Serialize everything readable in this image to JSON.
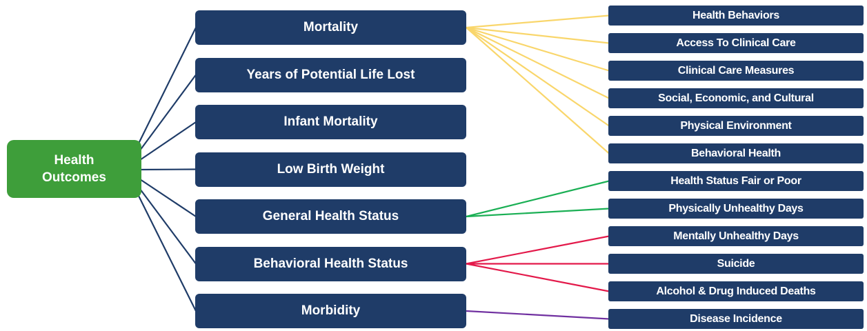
{
  "root": {
    "lines": [
      "Health",
      "Outcomes"
    ]
  },
  "outcomes": [
    {
      "label": "Mortality",
      "measures": [
        "Health Behaviors",
        "Access To Clinical Care",
        "Clinical Care Measures",
        "Social, Economic, and Cultural",
        "Physical Environment",
        "Behavioral Health"
      ]
    },
    {
      "label": "Years of Potential Life Lost",
      "measures": []
    },
    {
      "label": "Infant Mortality",
      "measures": []
    },
    {
      "label": "Low Birth Weight",
      "measures": []
    },
    {
      "label": "General Health Status",
      "measures": [
        "Health Status Fair or Poor",
        "Physically Unhealthy Days"
      ]
    },
    {
      "label": "Behavioral Health Status",
      "measures": [
        "Mentally Unhealthy Days",
        "Suicide",
        "Alcohol & Drug Induced Deaths"
      ]
    },
    {
      "label": "Morbidity",
      "measures": [
        "Disease Incidence"
      ]
    }
  ]
}
